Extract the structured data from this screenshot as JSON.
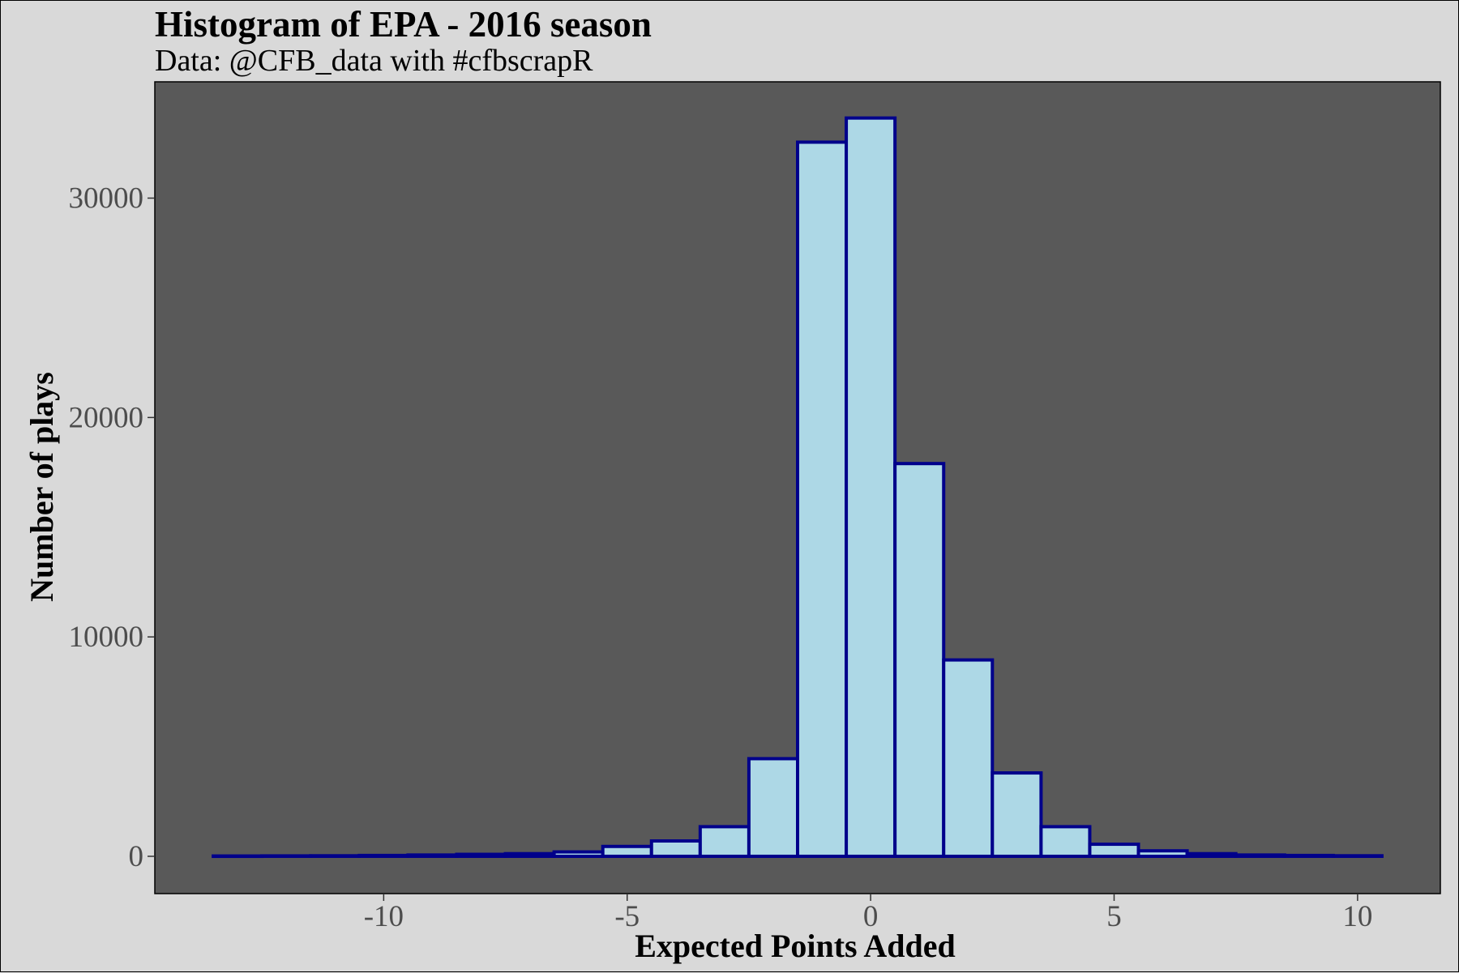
{
  "chart_data": {
    "type": "bar",
    "title": "Histogram of EPA - 2016 season",
    "subtitle": "Data: @CFB_data with #cfbscrapR",
    "xlabel": "Expected Points Added",
    "ylabel": "Number of plays",
    "bin_width": 1,
    "bin_centers": [
      -13,
      -12,
      -11,
      -10,
      -9,
      -8,
      -7,
      -6,
      -5,
      -4,
      -3,
      -2,
      -1,
      0,
      1,
      2,
      3,
      4,
      5,
      6,
      7,
      8,
      9,
      10
    ],
    "values": [
      15,
      20,
      25,
      40,
      60,
      90,
      120,
      200,
      450,
      700,
      1350,
      4450,
      32550,
      33650,
      17900,
      8950,
      3800,
      1350,
      550,
      250,
      120,
      60,
      40,
      25
    ],
    "xlim": [
      -14.7,
      11.7
    ],
    "ylim": [
      -1700,
      35300
    ],
    "x_ticks": [
      -10,
      -5,
      0,
      5,
      10
    ],
    "x_tick_labels": [
      "-10",
      "-5",
      "0",
      "5",
      "10"
    ],
    "y_ticks": [
      0,
      10000,
      20000,
      30000
    ],
    "y_tick_labels": [
      "0",
      "10000",
      "20000",
      "30000"
    ],
    "grid": false,
    "colors": {
      "bar_fill": "#add8e6",
      "bar_outline": "#00008b",
      "panel_background": "#595959",
      "plot_background": "#d9d9d9"
    }
  }
}
